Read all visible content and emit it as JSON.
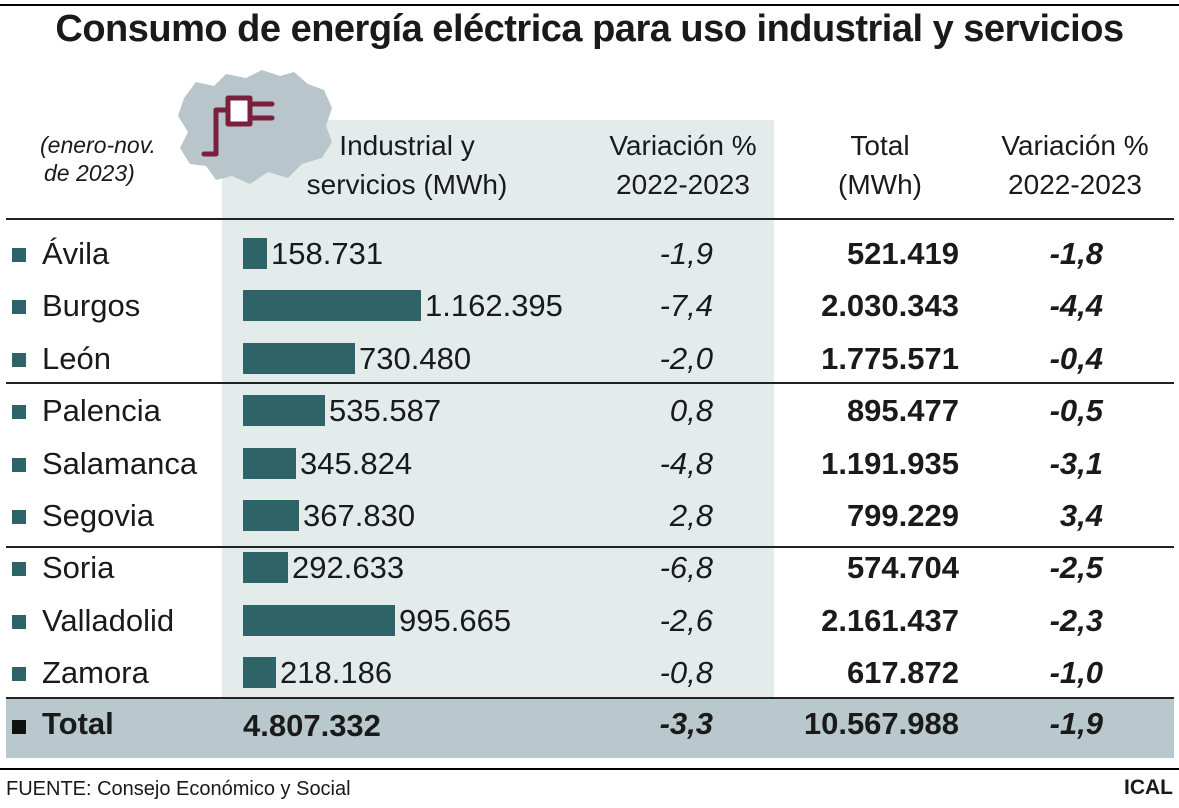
{
  "title": "Consumo de energía eléctrica para uso industrial y servicios",
  "note_line1": "(enero-nov.",
  "note_line2": "de 2023)",
  "columns": {
    "industrial_l1": "Industrial y",
    "industrial_l2": "servicios (MWh)",
    "var1_l1": "Variación %",
    "var1_l2": "2022-2023",
    "total_l1": "Total",
    "total_l2": "(MWh)",
    "var2_l1": "Variación %",
    "var2_l2": "2022-2023"
  },
  "colors": {
    "bar": "#2e6468",
    "shade": "#e3ebeb",
    "total_band": "#b9c8cc",
    "map": "#b8c6cc",
    "plug": "#7a1f3d"
  },
  "icons": [
    "castilla-y-leon-map-icon",
    "plug-icon"
  ],
  "chart_data": {
    "type": "table",
    "rows": [
      {
        "name": "Ávila",
        "industrial": 158731,
        "industrial_label": "158.731",
        "var_industrial": "-1,9",
        "total": "521.419",
        "var_total": "-1,8"
      },
      {
        "name": "Burgos",
        "industrial": 1162395,
        "industrial_label": "1.162.395",
        "var_industrial": "-7,4",
        "total": "2.030.343",
        "var_total": "-4,4"
      },
      {
        "name": "León",
        "industrial": 730480,
        "industrial_label": "730.480",
        "var_industrial": "-2,0",
        "total": "1.775.571",
        "var_total": "-0,4"
      },
      {
        "name": "Palencia",
        "industrial": 535587,
        "industrial_label": "535.587",
        "var_industrial": "0,8",
        "total": "895.477",
        "var_total": "-0,5"
      },
      {
        "name": "Salamanca",
        "industrial": 345824,
        "industrial_label": "345.824",
        "var_industrial": "-4,8",
        "total": "1.191.935",
        "var_total": "-3,1"
      },
      {
        "name": "Segovia",
        "industrial": 367830,
        "industrial_label": "367.830",
        "var_industrial": "2,8",
        "total": "799.229",
        "var_total": "3,4"
      },
      {
        "name": "Soria",
        "industrial": 292633,
        "industrial_label": "292.633",
        "var_industrial": "-6,8",
        "total": "574.704",
        "var_total": "-2,5"
      },
      {
        "name": "Valladolid",
        "industrial": 995665,
        "industrial_label": "995.665",
        "var_industrial": "-2,6",
        "total": "2.161.437",
        "var_total": "-2,3"
      },
      {
        "name": "Zamora",
        "industrial": 218186,
        "industrial_label": "218.186",
        "var_industrial": "-0,8",
        "total": "617.872",
        "var_total": "-1,0"
      }
    ],
    "total_row": {
      "name": "Total",
      "industrial": "4.807.332",
      "var_industrial": "-3,3",
      "total": "10.567.988",
      "var_total": "-1,9"
    }
  },
  "source": "FUENTE: Consejo Económico y Social",
  "brand": "ICAL"
}
